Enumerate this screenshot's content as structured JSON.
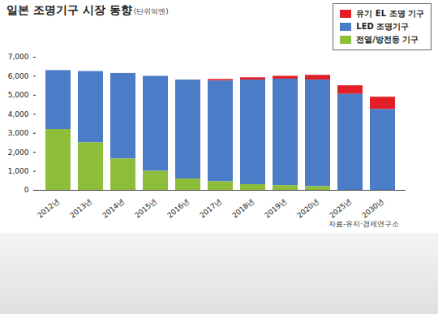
{
  "chart_data": {
    "type": "bar",
    "stacked": true,
    "title": "일본 조명기구 시장 동향",
    "subtitle": "(단위억엔)",
    "caption": "자료-유지·경제연구소",
    "legend": "top-right",
    "grid": false,
    "categories": [
      "2012년",
      "2013년",
      "2014년",
      "2015년",
      "2016년",
      "2017년",
      "2018년",
      "2019년",
      "2020년",
      "2025년",
      "2030년"
    ],
    "series": [
      {
        "name": "유기 EL 조명 기구",
        "color": "#e31e26",
        "values": [
          0,
          0,
          0,
          0,
          0,
          80,
          120,
          150,
          250,
          450,
          650
        ]
      },
      {
        "name": "LED 조명기구",
        "color": "#4a7cc8",
        "values": [
          3100,
          3750,
          4500,
          5000,
          5200,
          5300,
          5500,
          5600,
          5600,
          5050,
          4250
        ]
      },
      {
        "name": "전열/방전등 기구",
        "color": "#8dbd3a",
        "values": [
          3200,
          2500,
          1650,
          1000,
          600,
          450,
          300,
          250,
          200,
          0,
          0
        ]
      }
    ],
    "ylim": [
      0,
      7000
    ],
    "yticks": [
      0,
      {
        "value": 1000,
        "label": "1,000"
      },
      {
        "value": 2000,
        "label": "2,000"
      },
      {
        "value": 3000,
        "label": "3,000"
      },
      {
        "value": 4000,
        "label": "4,000"
      },
      {
        "value": 5000,
        "label": "5,000"
      },
      {
        "value": 6000,
        "label": "6,000"
      },
      {
        "value": 7000,
        "label": "7,000"
      }
    ]
  }
}
